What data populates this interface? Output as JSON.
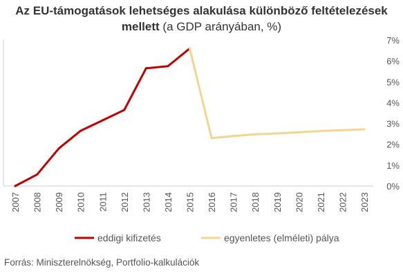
{
  "chart_data": {
    "type": "line",
    "title_bold": "Az EU-támogatások lehetséges alakulása különböző feltételezések mellett",
    "title_normal": "(a GDP arányában, %)",
    "x": [
      "2007",
      "2008",
      "2009",
      "2010",
      "2011",
      "2012",
      "2013",
      "2014",
      "2015",
      "2016",
      "2017",
      "2018",
      "2019",
      "2020",
      "2021",
      "2022",
      "2023"
    ],
    "y_ticks": [
      "0%",
      "1%",
      "2%",
      "3%",
      "4%",
      "5%",
      "6%",
      "7%"
    ],
    "ylim": [
      0,
      7
    ],
    "y_axis_position": "right",
    "grid": false,
    "legend_position": "bottom",
    "series": [
      {
        "name": "eddigi kifizetés",
        "color": "#c00000",
        "x": [
          "2007",
          "2008",
          "2009",
          "2010",
          "2011",
          "2012",
          "2013",
          "2014",
          "2015"
        ],
        "values": [
          0.0,
          0.55,
          1.8,
          2.65,
          3.15,
          3.65,
          5.65,
          5.75,
          6.6
        ]
      },
      {
        "name": "egyenletes (elméleti) pálya",
        "color": "#f4d58d",
        "x": [
          "2015",
          "2016",
          "2017",
          "2018",
          "2019",
          "2020",
          "2021",
          "2022",
          "2023"
        ],
        "values": [
          6.6,
          2.3,
          2.4,
          2.48,
          2.52,
          2.58,
          2.64,
          2.68,
          2.72
        ]
      }
    ]
  },
  "source": "Forrás: Miniszterelnökség, Portfolio-kalkulációk"
}
